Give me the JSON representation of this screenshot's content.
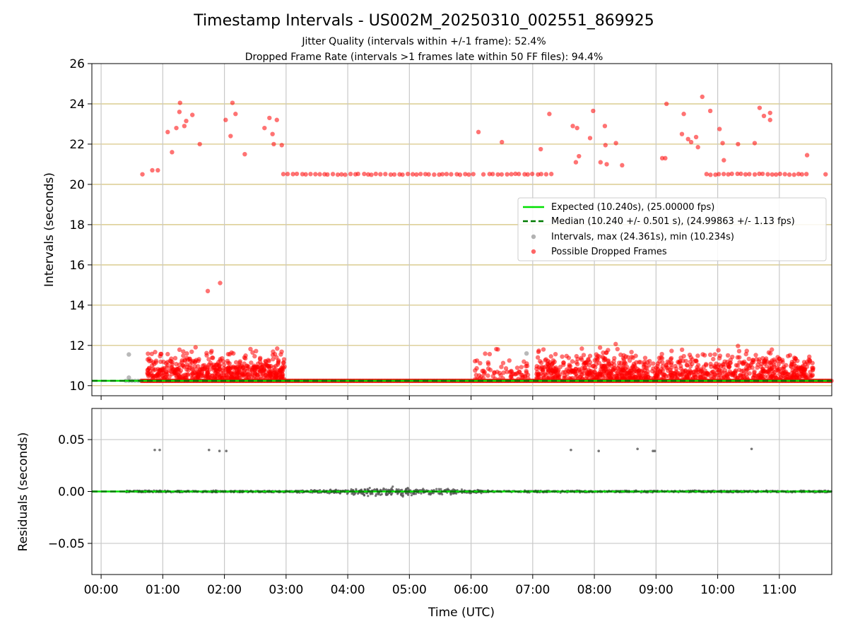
{
  "figure": {
    "title": "Timestamp Intervals - US002M_20250310_002551_869925",
    "subtitle_1": "Jitter Quality (intervals within +/-1 frame): 52.4%",
    "subtitle_2": "Dropped Frame Rate (intervals >1 frames late within 50 FF files): 94.4%"
  },
  "colors": {
    "expected": "#00e000",
    "median": "#007a00",
    "intervals": "#808080",
    "dropped": "#ff0000",
    "hgrid": "#d4c27a",
    "vgrid": "#c8c8c8",
    "residual_points": "#555555"
  },
  "chart_data": [
    {
      "type": "scatter",
      "id": "intervals",
      "ylabel": "Intervals (seconds)",
      "ylim": [
        9.5,
        26
      ],
      "xlim_hours": [
        -0.15,
        11.85
      ],
      "yticks": [
        10,
        12,
        14,
        16,
        18,
        20,
        22,
        24,
        26
      ],
      "ytick_labels": [
        "10",
        "12",
        "14",
        "16",
        "18",
        "20",
        "22",
        "24",
        "26"
      ],
      "grid": "horizontal gold lines, vertical gray lines",
      "legend_position": "center-right",
      "legend": [
        {
          "kind": "line",
          "label": "Expected (10.240s), (25.00000 fps)"
        },
        {
          "kind": "dashed",
          "label": "Median (10.240 +/- 0.501 s), (24.99863 +/- 1.13 fps)"
        },
        {
          "kind": "gray-dot",
          "label": "Intervals, max (24.361s), min (10.234s)"
        },
        {
          "kind": "red-dot",
          "label": "Possible Dropped Frames"
        }
      ],
      "expected_interval": 10.24,
      "median_interval": 10.24,
      "max_interval": 24.361,
      "min_interval": 10.234,
      "outliers_high": [
        [
          0.67,
          20.5
        ],
        [
          0.83,
          20.7
        ],
        [
          0.92,
          20.7
        ],
        [
          1.08,
          22.6
        ],
        [
          1.15,
          21.6
        ],
        [
          1.22,
          22.8
        ],
        [
          1.27,
          23.6
        ],
        [
          1.28,
          24.05
        ],
        [
          1.35,
          22.9
        ],
        [
          1.38,
          23.15
        ],
        [
          1.48,
          23.45
        ],
        [
          1.6,
          22.0
        ],
        [
          1.73,
          14.7
        ],
        [
          1.93,
          15.1
        ],
        [
          2.02,
          23.2
        ],
        [
          2.1,
          22.4
        ],
        [
          2.13,
          24.05
        ],
        [
          2.18,
          23.5
        ],
        [
          2.33,
          21.5
        ],
        [
          2.65,
          22.8
        ],
        [
          2.73,
          23.3
        ],
        [
          2.78,
          22.5
        ],
        [
          2.8,
          22.0
        ],
        [
          2.85,
          23.2
        ],
        [
          2.93,
          21.95
        ],
        [
          6.12,
          22.6
        ],
        [
          6.5,
          22.1
        ],
        [
          7.13,
          21.75
        ],
        [
          7.27,
          23.5
        ],
        [
          7.65,
          22.9
        ],
        [
          7.7,
          21.1
        ],
        [
          7.72,
          22.8
        ],
        [
          7.75,
          21.4
        ],
        [
          7.93,
          22.3
        ],
        [
          7.98,
          23.65
        ],
        [
          8.1,
          21.1
        ],
        [
          8.17,
          22.9
        ],
        [
          8.18,
          21.95
        ],
        [
          8.2,
          21.0
        ],
        [
          8.35,
          22.05
        ],
        [
          8.45,
          20.95
        ],
        [
          9.1,
          21.3
        ],
        [
          9.15,
          21.3
        ],
        [
          9.17,
          24.0
        ],
        [
          9.42,
          22.5
        ],
        [
          9.45,
          23.5
        ],
        [
          9.52,
          22.25
        ],
        [
          9.57,
          22.1
        ],
        [
          9.65,
          22.35
        ],
        [
          9.68,
          21.85
        ],
        [
          9.75,
          24.35
        ],
        [
          9.88,
          23.65
        ],
        [
          10.03,
          22.75
        ],
        [
          10.08,
          22.05
        ],
        [
          10.1,
          21.2
        ],
        [
          10.33,
          22.0
        ],
        [
          10.6,
          22.05
        ],
        [
          10.68,
          23.8
        ],
        [
          10.75,
          23.4
        ],
        [
          10.85,
          23.55
        ],
        [
          10.85,
          23.2
        ],
        [
          11.45,
          21.45
        ],
        [
          11.75,
          20.5
        ]
      ],
      "band_20_5": {
        "y": 20.5,
        "segments_hours": [
          [
            2.95,
            6.1
          ],
          [
            6.2,
            7.35
          ],
          [
            9.8,
            11.5
          ]
        ]
      }
    },
    {
      "type": "scatter",
      "id": "residuals",
      "ylabel": "Residuals (seconds)",
      "xlabel": "Time (UTC)",
      "ylim": [
        -0.08,
        0.08
      ],
      "yticks": [
        0.05,
        0.0,
        -0.05
      ],
      "ytick_labels": [
        "0.05",
        "0.00",
        "−0.05"
      ],
      "xticks_hours": [
        0,
        1,
        2,
        3,
        4,
        5,
        6,
        7,
        8,
        9,
        10,
        11
      ],
      "xtick_labels": [
        "00:00",
        "01:00",
        "02:00",
        "03:00",
        "04:00",
        "05:00",
        "06:00",
        "07:00",
        "08:00",
        "09:00",
        "10:00",
        "11:00"
      ],
      "outliers": [
        [
          0.87,
          0.04
        ],
        [
          0.95,
          0.04
        ],
        [
          1.75,
          0.04
        ],
        [
          1.92,
          0.039
        ],
        [
          2.03,
          0.039
        ],
        [
          7.62,
          0.04
        ],
        [
          8.07,
          0.039
        ],
        [
          8.7,
          0.041
        ],
        [
          8.95,
          0.039
        ],
        [
          8.98,
          0.039
        ],
        [
          10.55,
          0.041
        ]
      ]
    }
  ]
}
